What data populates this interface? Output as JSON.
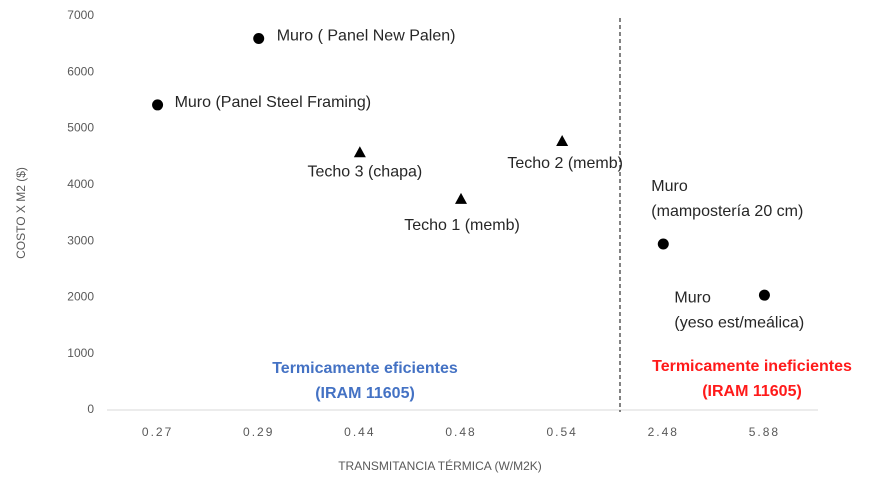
{
  "chart_data": {
    "type": "scatter",
    "y_label": "COSTO X M2 ($)",
    "x_label": "TRANSMITANCIA TÉRMICA (W/M2K)",
    "categories": [
      "0.27",
      "0.29",
      "0.44",
      "0.48",
      "0.54",
      "2.48",
      "5.88"
    ],
    "values": [
      5420,
      6600,
      4580,
      3750,
      4780,
      2950,
      2040
    ],
    "markers": [
      "circle",
      "circle",
      "triangle",
      "triangle",
      "triangle",
      "circle",
      "circle"
    ],
    "point_labels": [
      [
        "Muro (Panel Steel Framing)"
      ],
      [
        "Muro ( Panel New Palen)"
      ],
      [
        "Techo 3 (chapa)"
      ],
      [
        "Techo 1 (memb)"
      ],
      [
        "Techo 2 (memb)"
      ],
      [
        "Muro",
        "(mampostería 20 cm)"
      ],
      [
        "Muro",
        "(yeso est/meálica)"
      ]
    ],
    "color": "#000000",
    "ylim": [
      0,
      7000
    ],
    "yticks": [
      0,
      1000,
      2000,
      3000,
      4000,
      5000,
      6000,
      7000
    ],
    "annotations": [
      {
        "lines": [
          "Termicamente eficientes",
          "(IRAM  11605)"
        ],
        "color": "#4472c4"
      },
      {
        "lines": [
          "Termicamente ineficientes",
          "(IRAM 11605)"
        ],
        "color": "#ff1a1a"
      }
    ]
  }
}
